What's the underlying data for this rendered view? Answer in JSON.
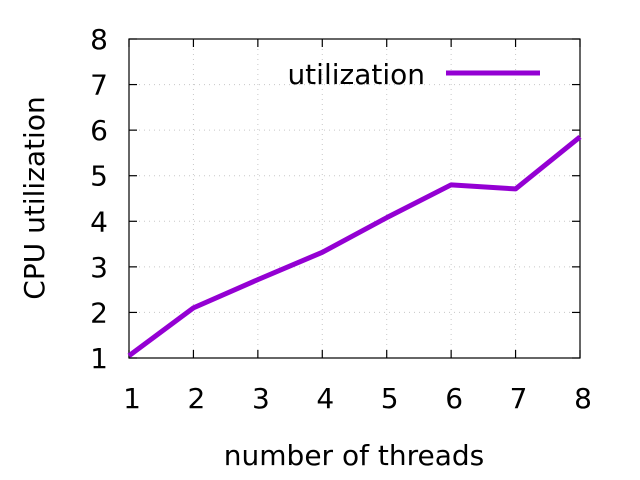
{
  "chart_data": {
    "type": "line",
    "title": "",
    "xlabel": "number of threads",
    "ylabel": "CPU utilization",
    "xlim": [
      1,
      8
    ],
    "ylim": [
      1,
      8
    ],
    "x_ticks": [
      1,
      2,
      3,
      4,
      5,
      6,
      7,
      8
    ],
    "y_ticks": [
      1,
      2,
      3,
      4,
      5,
      6,
      7,
      8
    ],
    "grid": true,
    "legend_position": "top-right",
    "series": [
      {
        "name": "utilization",
        "color": "#9400d3",
        "x": [
          1,
          2,
          3,
          4,
          5,
          6,
          7,
          8
        ],
        "y": [
          1.05,
          2.1,
          2.72,
          3.32,
          4.08,
          4.8,
          4.71,
          5.85
        ]
      }
    ]
  }
}
